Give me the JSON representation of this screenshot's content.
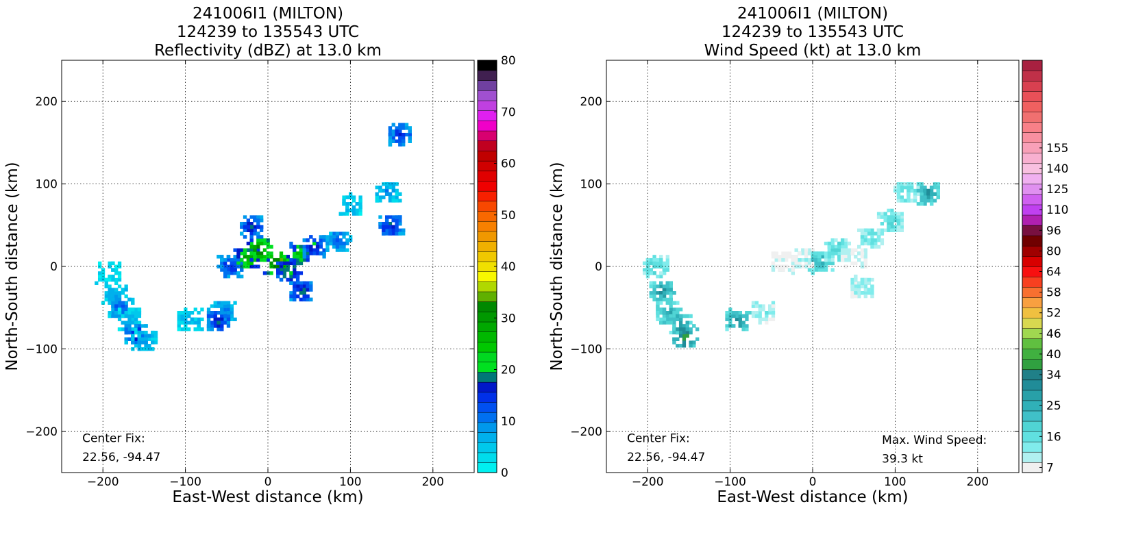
{
  "chart_data": [
    {
      "type": "heatmap",
      "title_lines": [
        "241006I1 (MILTON)",
        "124239 to 135543 UTC",
        "Reflectivity (dBZ) at 13.0 km"
      ],
      "xlabel": "East-West distance (km)",
      "ylabel": "North-South distance (km)",
      "xlim": [
        -250,
        250
      ],
      "ylim": [
        -250,
        250
      ],
      "xticks": [
        -200,
        -100,
        0,
        100,
        200
      ],
      "yticks": [
        -200,
        -100,
        0,
        100,
        200
      ],
      "xtick_labels": [
        "−200",
        "−100",
        "0",
        "100",
        "200"
      ],
      "ytick_labels": [
        "−200",
        "−100",
        "0",
        "100",
        "200"
      ],
      "grid": true,
      "center_fix_label": "Center Fix:",
      "center_fix_value": "22.56, -94.47",
      "colorbar": {
        "min": 0,
        "max": 80,
        "tick_values": [
          0,
          10,
          20,
          30,
          40,
          50,
          60,
          70,
          80
        ],
        "tick_labels": [
          "0",
          "10",
          "20",
          "30",
          "40",
          "50",
          "60",
          "70",
          "80"
        ],
        "colors": [
          "#00f0f0",
          "#00dcec",
          "#00c8ec",
          "#00b0ec",
          "#0098ec",
          "#0070f0",
          "#0050f0",
          "#0030e8",
          "#0018c8",
          "#007878",
          "#00e020",
          "#00d820",
          "#00c800",
          "#00b800",
          "#00a800",
          "#009800",
          "#008800",
          "#60b000",
          "#b0d800",
          "#f8f800",
          "#f0e000",
          "#f0c800",
          "#f0b000",
          "#f09800",
          "#f88000",
          "#f86800",
          "#f84800",
          "#f82000",
          "#f00000",
          "#e00000",
          "#d00000",
          "#c00000",
          "#c00020",
          "#d80070",
          "#f000c8",
          "#e020f0",
          "#c040e0",
          "#a050d0",
          "#7040a0",
          "#402050",
          "#000000"
        ]
      },
      "echo_regions": [
        {
          "x": -193,
          "y": -8,
          "value": 2
        },
        {
          "x": -185,
          "y": -35,
          "value": 4
        },
        {
          "x": -178,
          "y": -50,
          "value": 6
        },
        {
          "x": -168,
          "y": -65,
          "value": 3
        },
        {
          "x": -160,
          "y": -82,
          "value": 8
        },
        {
          "x": -150,
          "y": -90,
          "value": 4
        },
        {
          "x": -95,
          "y": -65,
          "value": 3
        },
        {
          "x": -55,
          "y": -55,
          "value": 5
        },
        {
          "x": -60,
          "y": -65,
          "value": 9
        },
        {
          "x": -45,
          "y": 0,
          "value": 8
        },
        {
          "x": -25,
          "y": 10,
          "value": 16
        },
        {
          "x": -10,
          "y": 20,
          "value": 18
        },
        {
          "x": 10,
          "y": 5,
          "value": 20
        },
        {
          "x": 25,
          "y": -5,
          "value": 12
        },
        {
          "x": 40,
          "y": 15,
          "value": 14
        },
        {
          "x": 55,
          "y": 25,
          "value": 10
        },
        {
          "x": 85,
          "y": 30,
          "value": 6
        },
        {
          "x": 100,
          "y": 75,
          "value": 3
        },
        {
          "x": 145,
          "y": 90,
          "value": 4
        },
        {
          "x": 160,
          "y": 160,
          "value": 8
        },
        {
          "x": 150,
          "y": 50,
          "value": 9
        },
        {
          "x": -20,
          "y": 48,
          "value": 9
        },
        {
          "x": 40,
          "y": -30,
          "value": 10
        }
      ]
    },
    {
      "type": "heatmap",
      "title_lines": [
        "241006I1 (MILTON)",
        "124239 to 135543 UTC",
        "Wind Speed (kt) at 13.0 km"
      ],
      "xlabel": "East-West distance (km)",
      "ylabel": "North-South distance (km)",
      "xlim": [
        -250,
        250
      ],
      "ylim": [
        -250,
        250
      ],
      "xticks": [
        -200,
        -100,
        0,
        100,
        200
      ],
      "yticks": [
        -200,
        -100,
        0,
        100,
        200
      ],
      "xtick_labels": [
        "−200",
        "−100",
        "0",
        "100",
        "200"
      ],
      "ytick_labels": [
        "−200",
        "−100",
        "0",
        "100",
        "200"
      ],
      "grid": true,
      "center_fix_label": "Center Fix:",
      "center_fix_value": "22.56, -94.47",
      "max_wind_label": "Max. Wind Speed:",
      "max_wind_value": "39.3 kt",
      "colorbar": {
        "tick_labels": [
          "7",
          "16",
          "25",
          "34",
          "40",
          "46",
          "52",
          "58",
          "64",
          "80",
          "96",
          "110",
          "125",
          "140",
          "155"
        ],
        "tick_bins": [
          0,
          3,
          6,
          9,
          11,
          13,
          15,
          17,
          19,
          21,
          23,
          25,
          27,
          29,
          31
        ],
        "colors": [
          "#f0f0f0",
          "#b0f0f0",
          "#80ecec",
          "#60e0e0",
          "#50d4d4",
          "#40c0c8",
          "#30b0b8",
          "#28a0a8",
          "#208c98",
          "#208088",
          "#30a040",
          "#40b040",
          "#60c040",
          "#a0d850",
          "#d8d850",
          "#f0c040",
          "#f8a040",
          "#f87030",
          "#f84020",
          "#f81010",
          "#d80000",
          "#a00000",
          "#700000",
          "#781040",
          "#b020b0",
          "#c040f0",
          "#d060f0",
          "#e090f0",
          "#f0b0f0",
          "#f8c0e0",
          "#f8b0d0",
          "#f8a0b8",
          "#f890a0",
          "#f88088",
          "#f07070",
          "#f06060",
          "#e85058",
          "#d84050",
          "#c03048",
          "#a82040"
        ]
      },
      "echo_regions": [
        {
          "x": -190,
          "y": 0,
          "value": 4
        },
        {
          "x": -182,
          "y": -30,
          "value": 8
        },
        {
          "x": -175,
          "y": -55,
          "value": 7
        },
        {
          "x": -160,
          "y": -70,
          "value": 8
        },
        {
          "x": -155,
          "y": -85,
          "value": 11
        },
        {
          "x": -90,
          "y": -65,
          "value": 8
        },
        {
          "x": -60,
          "y": -55,
          "value": 2
        },
        {
          "x": -35,
          "y": 5,
          "value": 0
        },
        {
          "x": -10,
          "y": 10,
          "value": 1
        },
        {
          "x": 10,
          "y": 5,
          "value": 6
        },
        {
          "x": 30,
          "y": 20,
          "value": 4
        },
        {
          "x": 50,
          "y": 10,
          "value": 1
        },
        {
          "x": 70,
          "y": 35,
          "value": 3
        },
        {
          "x": 95,
          "y": 55,
          "value": 4
        },
        {
          "x": 115,
          "y": 90,
          "value": 3
        },
        {
          "x": 140,
          "y": 88,
          "value": 8
        },
        {
          "x": 60,
          "y": -25,
          "value": 2
        }
      ]
    }
  ]
}
